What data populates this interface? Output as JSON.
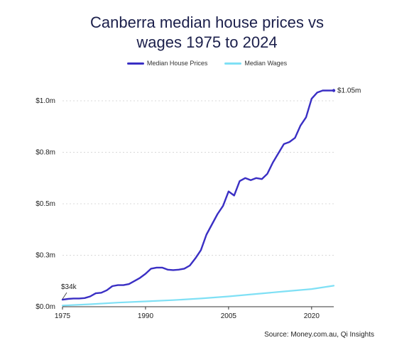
{
  "colors": {
    "house": "#3a2fc4",
    "wages": "#7fe0f5",
    "grid": "#d8d8d8",
    "axis": "#333333"
  },
  "source": "Source: Money.com.au, Qi Insights",
  "chart_data": {
    "type": "line",
    "title_lines": [
      "Canberra median house prices vs",
      "wages 1975 to 2024"
    ],
    "xlabel": "",
    "ylabel": "",
    "xlim": [
      1975,
      2024
    ],
    "ylim": [
      0,
      1.0
    ],
    "x_ticks": [
      1975,
      1990,
      2005,
      2020
    ],
    "y_ticks": [
      {
        "value": 0.0,
        "label": "$0.0m"
      },
      {
        "value": 0.25,
        "label": "$0.3m"
      },
      {
        "value": 0.5,
        "label": "$0.5m"
      },
      {
        "value": 0.75,
        "label": "$0.8m"
      },
      {
        "value": 1.0,
        "label": "$1.0m"
      }
    ],
    "grid": "horizontal",
    "legend_position": "top-center",
    "annotations": [
      {
        "series": "Median House Prices",
        "x": 1975,
        "y": 0.034,
        "text": "$34k",
        "position": "above-left"
      },
      {
        "series": "Median House Prices",
        "x": 2024,
        "y": 1.05,
        "text": "$1.05m",
        "position": "right"
      }
    ],
    "series": [
      {
        "name": "Median House Prices",
        "color_key": "house",
        "x": [
          1975,
          1976,
          1977,
          1978,
          1979,
          1980,
          1981,
          1982,
          1983,
          1984,
          1985,
          1986,
          1987,
          1988,
          1989,
          1990,
          1991,
          1992,
          1993,
          1994,
          1995,
          1996,
          1997,
          1998,
          1999,
          2000,
          2001,
          2002,
          2003,
          2004,
          2005,
          2006,
          2007,
          2008,
          2009,
          2010,
          2011,
          2012,
          2013,
          2014,
          2015,
          2016,
          2017,
          2018,
          2019,
          2020,
          2021,
          2022,
          2023,
          2024
        ],
        "values": [
          0.034,
          0.038,
          0.04,
          0.04,
          0.042,
          0.05,
          0.065,
          0.068,
          0.08,
          0.1,
          0.105,
          0.105,
          0.11,
          0.125,
          0.14,
          0.16,
          0.185,
          0.19,
          0.19,
          0.18,
          0.178,
          0.18,
          0.185,
          0.2,
          0.235,
          0.275,
          0.35,
          0.4,
          0.45,
          0.49,
          0.56,
          0.54,
          0.61,
          0.625,
          0.615,
          0.625,
          0.62,
          0.645,
          0.7,
          0.745,
          0.79,
          0.8,
          0.82,
          0.88,
          0.92,
          1.01,
          1.04,
          1.05,
          1.05,
          1.05
        ]
      },
      {
        "name": "Median Wages",
        "color_key": "wages",
        "x": [
          1975,
          1980,
          1985,
          1990,
          1995,
          2000,
          2005,
          2010,
          2015,
          2020,
          2024
        ],
        "values": [
          0.006,
          0.012,
          0.02,
          0.026,
          0.032,
          0.04,
          0.05,
          0.062,
          0.074,
          0.086,
          0.102
        ]
      }
    ]
  }
}
